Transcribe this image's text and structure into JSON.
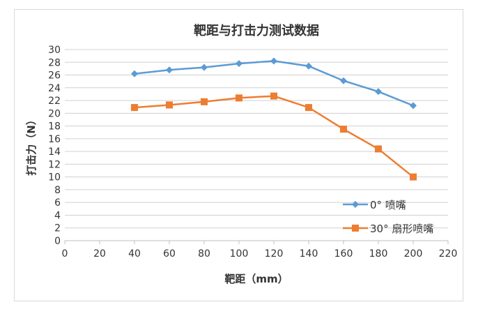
{
  "chart_data": {
    "type": "line",
    "title": "靶距与打击力测试数据",
    "xlabel": "靶距（mm）",
    "ylabel": "打击力（N）",
    "xlim": [
      0,
      220
    ],
    "ylim": [
      0,
      30
    ],
    "xticks": [
      0,
      20,
      40,
      60,
      80,
      100,
      120,
      140,
      160,
      180,
      200,
      220
    ],
    "yticks": [
      0,
      2,
      4,
      6,
      8,
      10,
      12,
      14,
      16,
      18,
      20,
      22,
      24,
      26,
      28,
      30
    ],
    "grid": "horizontal",
    "legend_position": "bottom-right",
    "x": [
      40,
      60,
      80,
      100,
      120,
      140,
      160,
      180,
      200
    ],
    "series": [
      {
        "name": "0°  喷嘴",
        "color": "#5b9bd5",
        "marker": "diamond",
        "values": [
          26.2,
          26.8,
          27.2,
          27.8,
          28.2,
          27.4,
          25.1,
          23.4,
          21.2
        ]
      },
      {
        "name": "30°  扇形喷嘴",
        "color": "#ed7d31",
        "marker": "square",
        "values": [
          20.9,
          21.3,
          21.8,
          22.4,
          22.7,
          20.9,
          17.5,
          14.4,
          10.0
        ]
      }
    ]
  }
}
